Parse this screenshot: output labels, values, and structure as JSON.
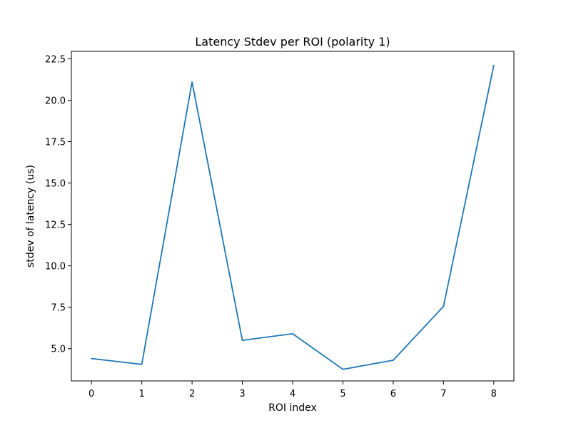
{
  "chart_data": {
    "type": "line",
    "title": "Latency Stdev per ROI (polarity 1)",
    "xlabel": "ROI index",
    "ylabel": "stdev of latency (us)",
    "x": [
      0,
      1,
      2,
      3,
      4,
      5,
      6,
      7,
      8
    ],
    "xticks": [
      0,
      1,
      2,
      3,
      4,
      5,
      6,
      7,
      8
    ],
    "xlim": [
      -0.4,
      8.4
    ],
    "ylim": [
      3.05,
      22.95
    ],
    "yticks": [
      5.0,
      7.5,
      10.0,
      12.5,
      15.0,
      17.5,
      20.0,
      22.5
    ],
    "ytick_labels": [
      "5.0",
      "7.5",
      "10.0",
      "12.5",
      "15.0",
      "17.5",
      "20.0",
      "22.5"
    ],
    "grid": false,
    "series": [
      {
        "color": "#1f77b4",
        "values": [
          4.4,
          4.05,
          21.1,
          5.5,
          5.9,
          3.75,
          4.3,
          7.55,
          22.1
        ]
      }
    ]
  }
}
